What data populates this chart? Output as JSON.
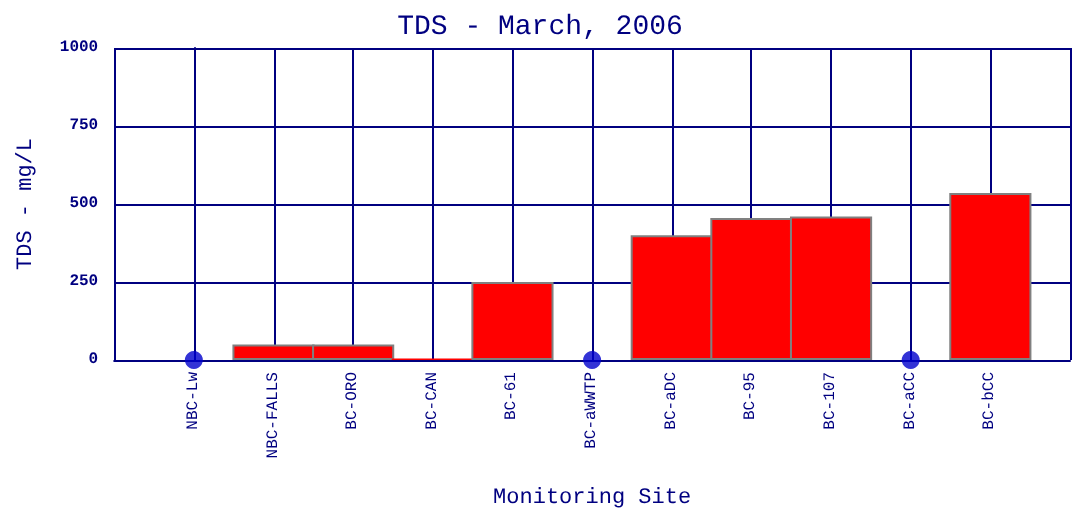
{
  "chart_data": {
    "type": "bar",
    "title": "TDS - March, 2006",
    "xlabel": "Monitoring Site",
    "ylabel": "TDS - mg/L",
    "categories": [
      "NBC-Lw",
      "NBC-FALLS",
      "BC-ORO",
      "BC-CAN",
      "BC-61",
      "BC-aWWTP",
      "BC-aDC",
      "BC-95",
      "BC-107",
      "BC-aCC",
      "BC-bCC"
    ],
    "series": [
      {
        "color": "#ff0000",
        "values": [
          null,
          50,
          50,
          5,
          250,
          null,
          400,
          455,
          460,
          null,
          535
        ]
      },
      {
        "type": "scatter",
        "color": "#0000cc",
        "x": [
          "NBC-Lw",
          "BC-aWWTP",
          "BC-aCC"
        ],
        "values": [
          0,
          0,
          0
        ]
      }
    ],
    "ylim": [
      0,
      1000
    ],
    "yticks": [
      0,
      250,
      500,
      750,
      1000
    ],
    "grid": true,
    "marker": "circle"
  }
}
